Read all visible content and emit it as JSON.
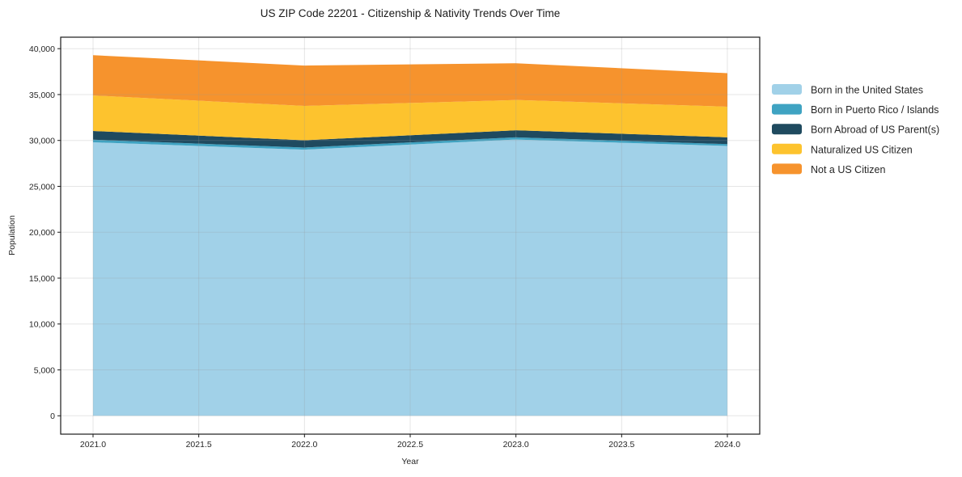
{
  "chart_data": {
    "type": "area",
    "stacked": true,
    "title": "US ZIP Code 22201 - Citizenship & Nativity Trends Over Time",
    "xlabel": "Year",
    "ylabel": "Population",
    "x": [
      2021,
      2022,
      2023,
      2024
    ],
    "series": [
      {
        "name": "Born in the United States",
        "color": "#A1D1E8",
        "values": [
          29800,
          29000,
          30100,
          29400
        ]
      },
      {
        "name": "Born in Puerto Rico / Islands",
        "color": "#3FA3C2",
        "values": [
          280,
          230,
          240,
          200
        ]
      },
      {
        "name": "Born Abroad of US Parent(s)",
        "color": "#1F4A5F",
        "values": [
          950,
          790,
          770,
          740
        ]
      },
      {
        "name": "Naturalized US Citizen",
        "color": "#FDC32E",
        "values": [
          3870,
          3740,
          3300,
          3340
        ]
      },
      {
        "name": "Not a US Citizen",
        "color": "#F6932D",
        "values": [
          4390,
          4400,
          4000,
          3650
        ]
      }
    ],
    "cumulative_totals": [
      39290,
      38160,
      38410,
      37330
    ],
    "xlim": [
      2020.847,
      2024.153
    ],
    "ylim": [
      -2000,
      41250
    ],
    "xticks": [
      {
        "v": 2021.0,
        "label": "2021.0"
      },
      {
        "v": 2021.5,
        "label": "2021.5"
      },
      {
        "v": 2022.0,
        "label": "2022.0"
      },
      {
        "v": 2022.5,
        "label": "2022.5"
      },
      {
        "v": 2023.0,
        "label": "2023.0"
      },
      {
        "v": 2023.5,
        "label": "2023.5"
      },
      {
        "v": 2024.0,
        "label": "2024.0"
      }
    ],
    "yticks": [
      {
        "v": 0,
        "label": "0"
      },
      {
        "v": 5000,
        "label": "5,000"
      },
      {
        "v": 10000,
        "label": "10,000"
      },
      {
        "v": 15000,
        "label": "15,000"
      },
      {
        "v": 20000,
        "label": "20,000"
      },
      {
        "v": 25000,
        "label": "25,000"
      },
      {
        "v": 30000,
        "label": "30,000"
      },
      {
        "v": 35000,
        "label": "35,000"
      },
      {
        "v": 40000,
        "label": "40,000"
      }
    ],
    "grid": true,
    "legend_position": "right",
    "colors": {
      "grid": "#999999",
      "spine": "#1a1a1a",
      "background": "#ffffff"
    }
  }
}
